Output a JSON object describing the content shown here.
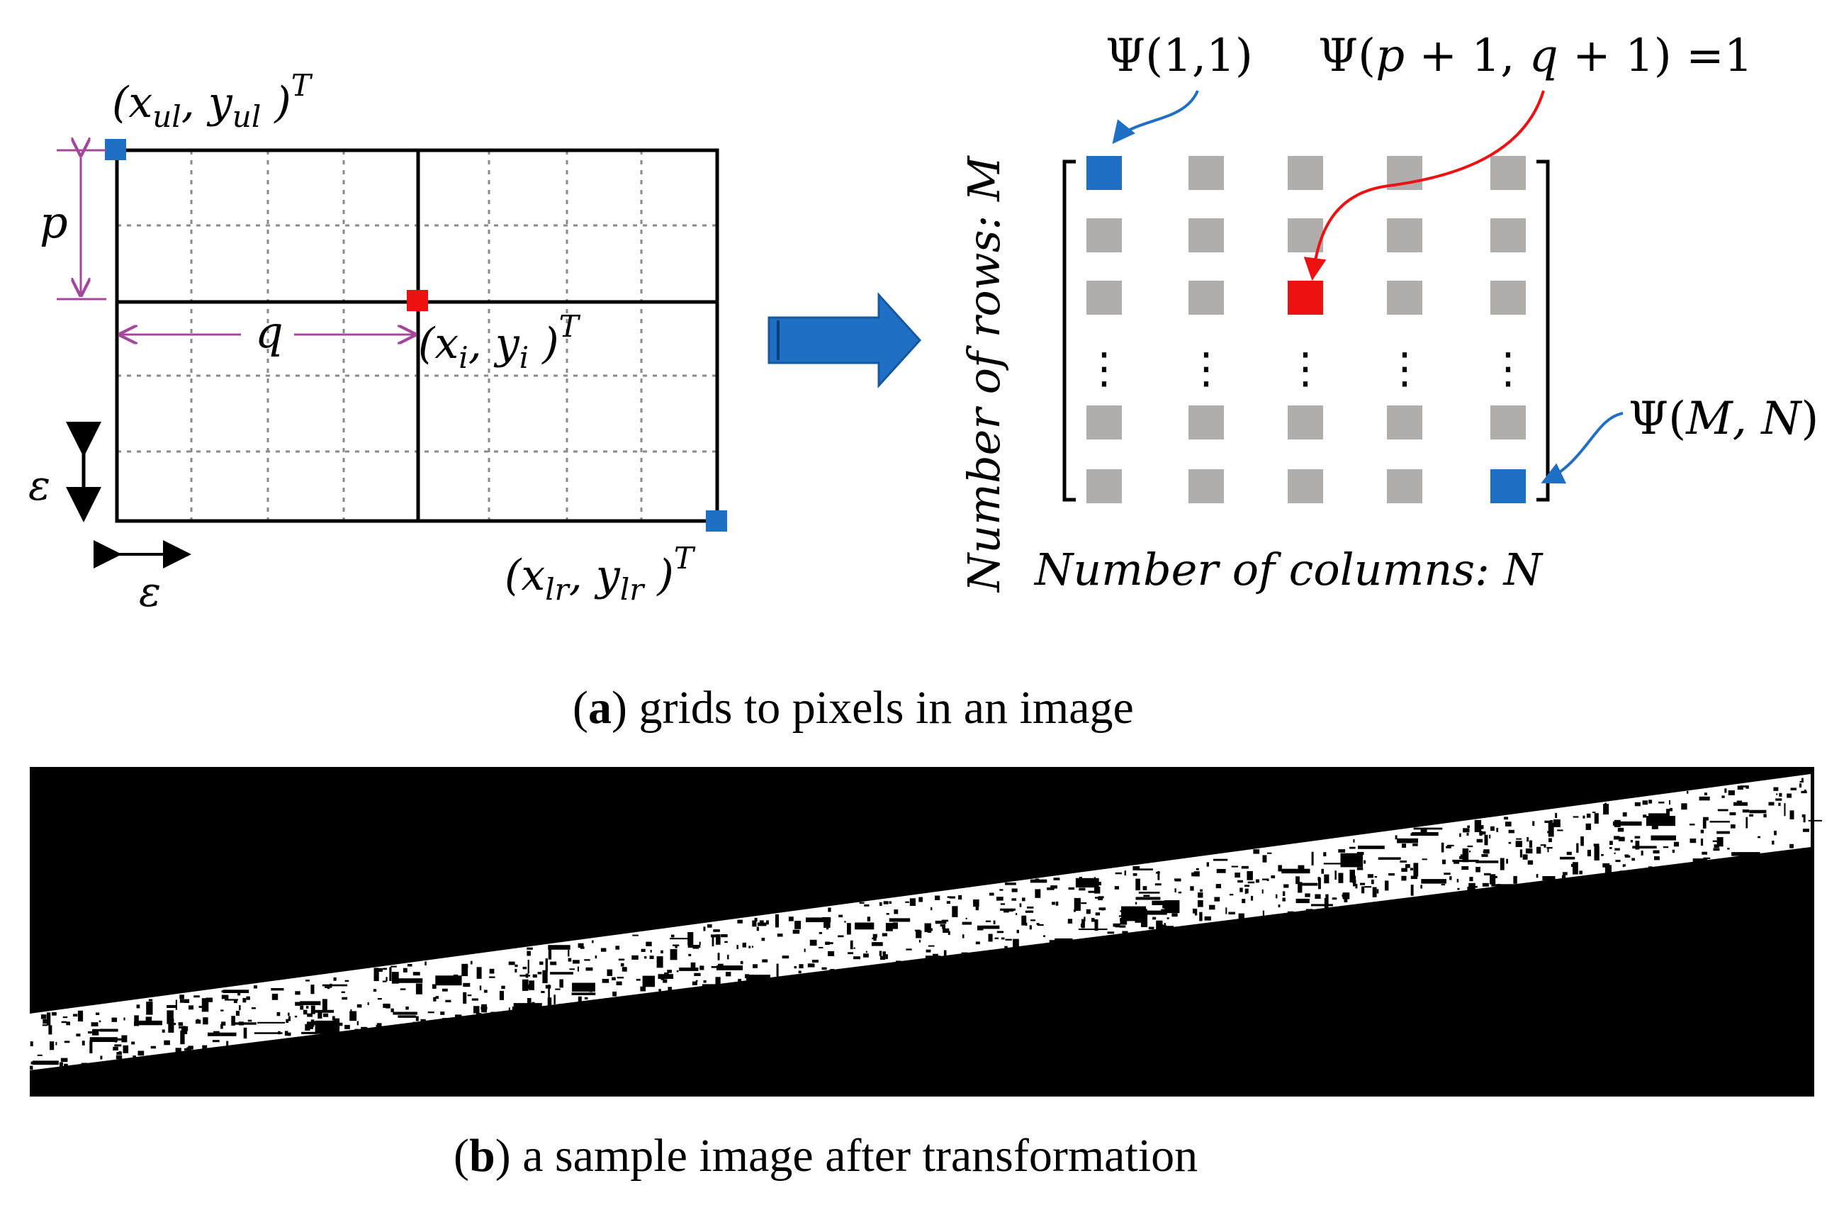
{
  "panel_a": {
    "caption_letter": "a",
    "caption_text": "grids to pixels in an image",
    "left_grid": {
      "upper_left_label": "(x",
      "upper_left_sub": "ul",
      "upper_left_mid": ", y",
      "upper_left_sub2": "ul",
      "upper_left_end": " )",
      "upper_left_sup": "T",
      "lower_right_label": "(x",
      "lower_right_sub": "lr",
      "lower_right_mid": ", y",
      "lower_right_sub2": "lr",
      "lower_right_end": " )",
      "lower_right_sup": "T",
      "point_label": "(x",
      "point_sub": "i",
      "point_mid": ", y",
      "point_sub2": "i",
      "point_end": " )",
      "point_sup": "T",
      "p_label": "p",
      "q_label": "q",
      "eps_vertical": "ε",
      "eps_horizontal": "ε"
    },
    "matrix": {
      "psi_first": "Ψ(1,1)",
      "psi_target_a": "Ψ(",
      "psi_target_b": "p",
      "psi_target_c": " + 1, ",
      "psi_target_d": "q",
      "psi_target_e": " + 1) =1",
      "psi_last_a": "Ψ(",
      "psi_last_b": "M, N",
      "psi_last_c": ")",
      "rows_label": "Number of rows",
      "rows_var": "M",
      "cols_label": "Number of columns",
      "cols_var": "N",
      "dots": "⋮"
    }
  },
  "panel_b": {
    "caption_letter": "b",
    "caption_text": "a sample image after transformation"
  },
  "colors": {
    "blue": "#1f6fc4",
    "red": "#ee1111",
    "gray": "#b0adad",
    "purple": "#a3489b",
    "arrow_blue": "#1f6fc4"
  }
}
